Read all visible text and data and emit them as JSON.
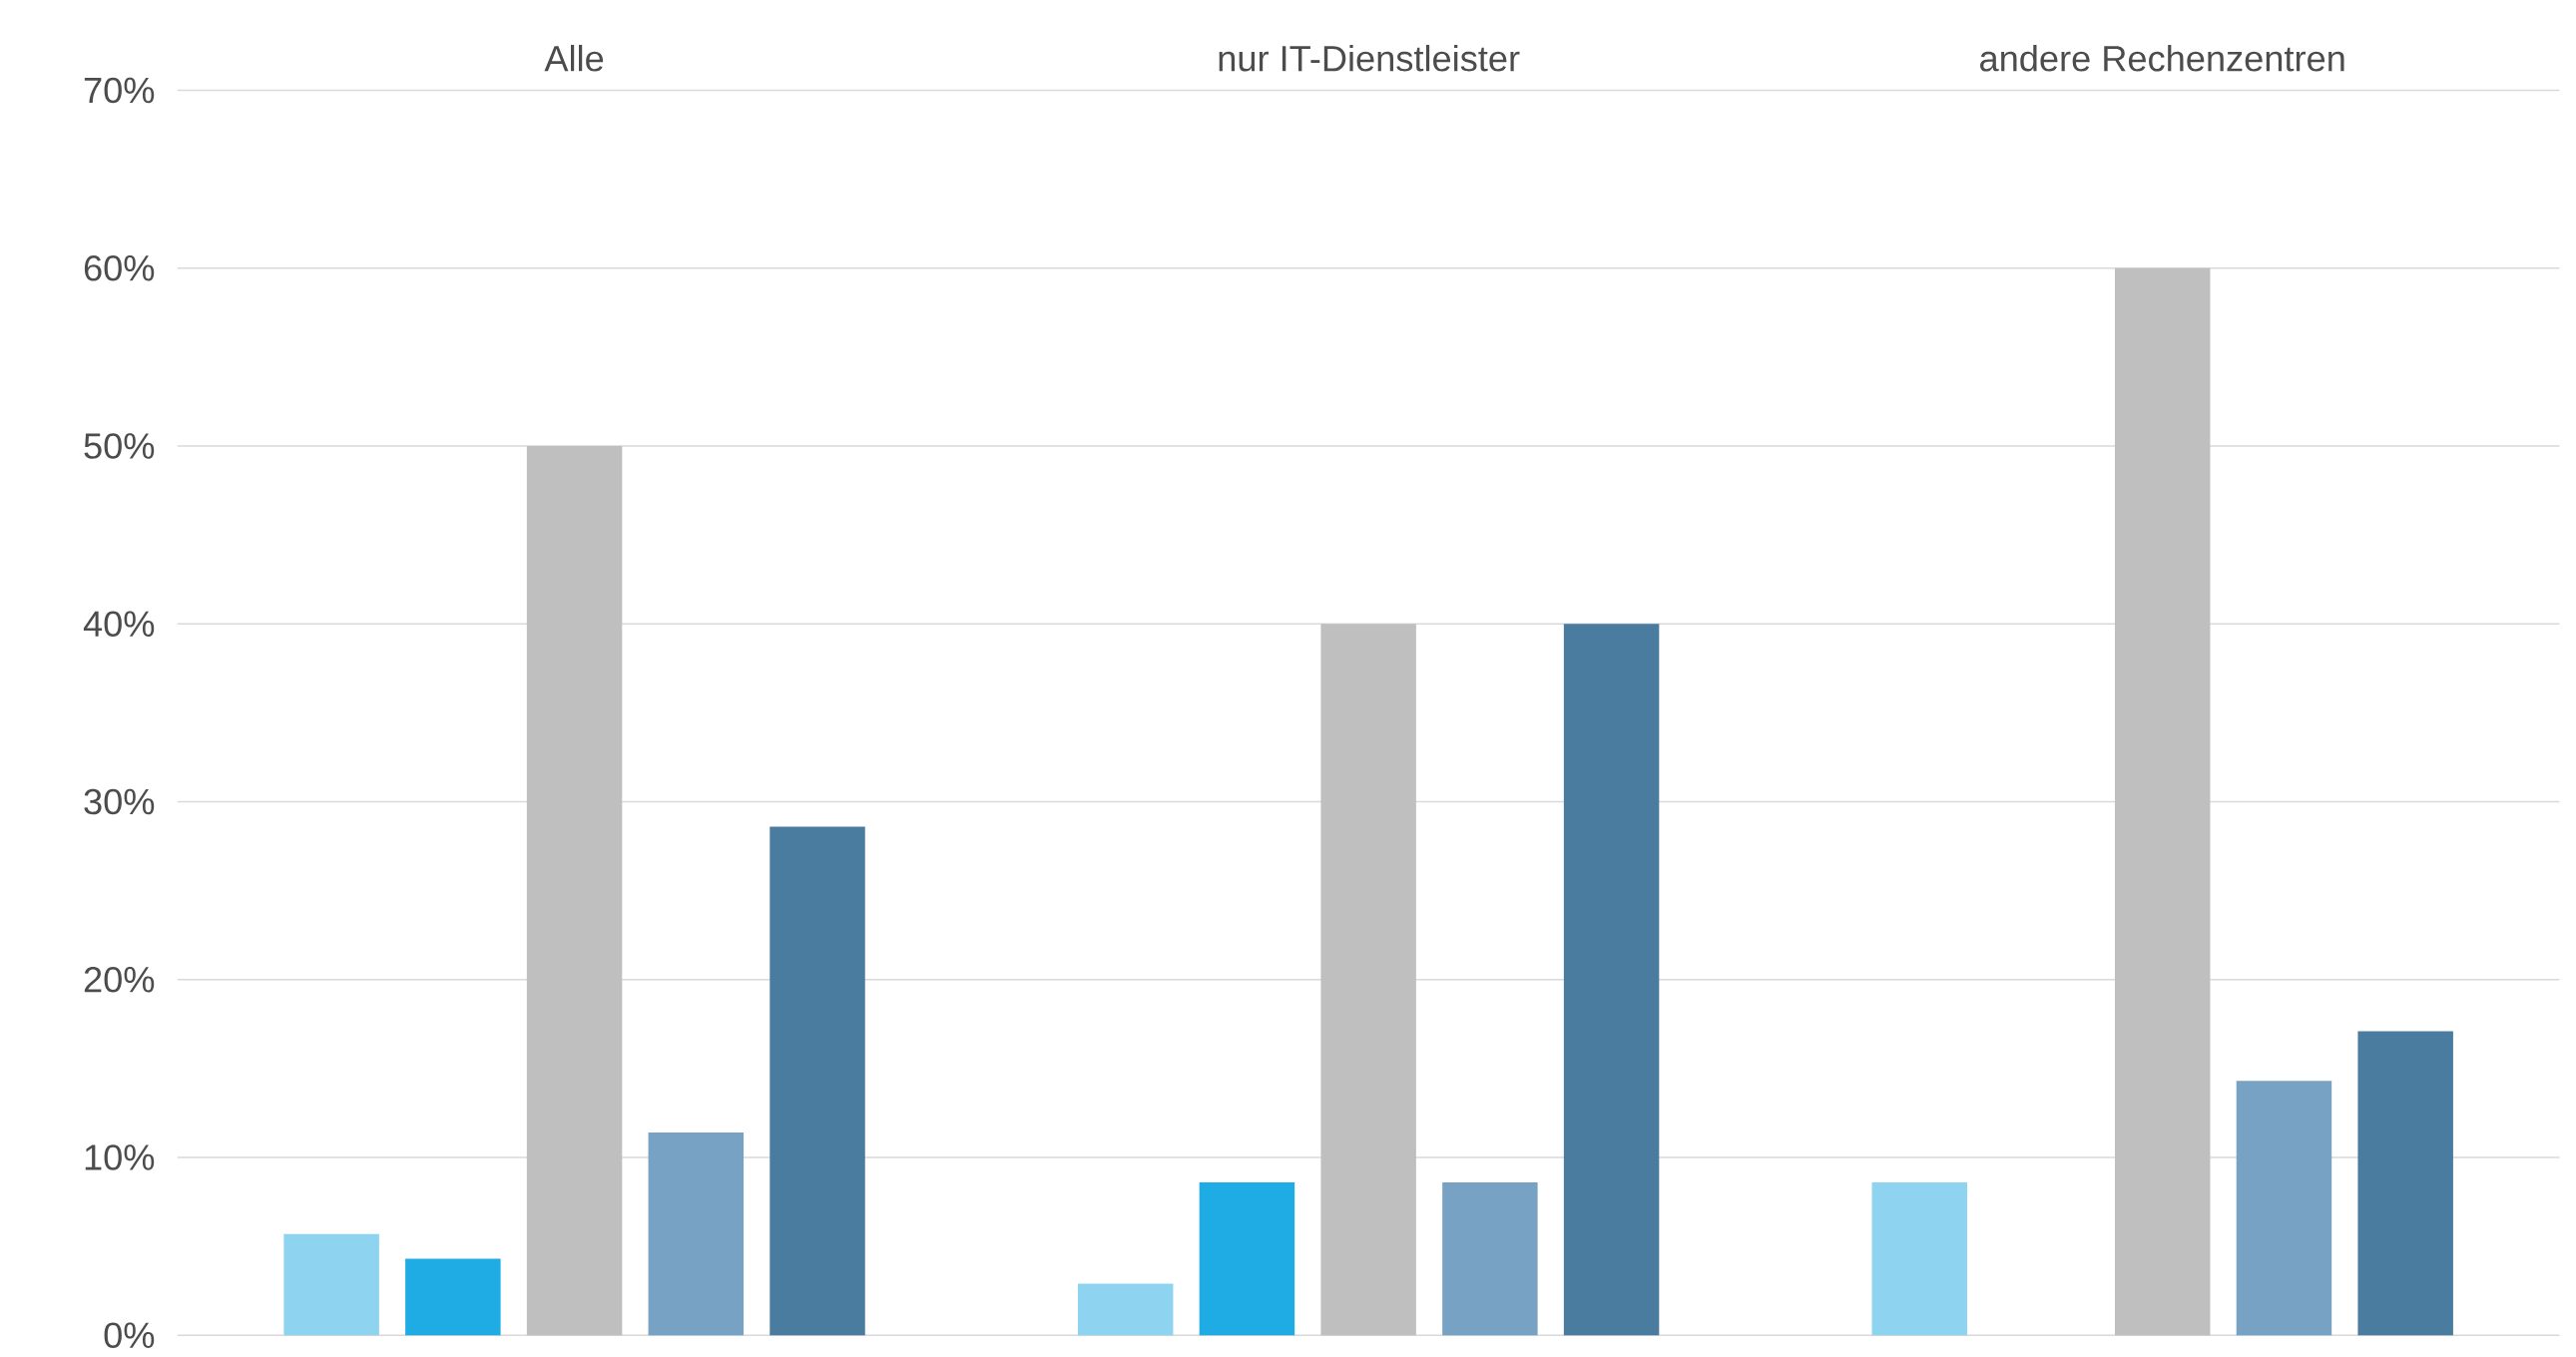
{
  "chart_data": {
    "type": "bar",
    "categories": [
      "Alle",
      "nur IT-Dienstleister",
      "andere Rechenzentren"
    ],
    "series": [
      {
        "color": "#8ed3f0",
        "values": [
          5.7,
          2.9,
          8.6
        ]
      },
      {
        "color": "#1fabe3",
        "values": [
          4.3,
          8.6,
          0
        ]
      },
      {
        "color": "#bfbfbf",
        "values": [
          50,
          40,
          60
        ]
      },
      {
        "color": "#78a2c4",
        "values": [
          11.4,
          8.6,
          14.3
        ]
      },
      {
        "color": "#4a7ca0",
        "values": [
          28.6,
          40,
          17.1
        ]
      }
    ],
    "ylim": [
      0,
      70
    ],
    "yticks": [
      {
        "value": 0,
        "label": "0%"
      },
      {
        "value": 10,
        "label": "10%"
      },
      {
        "value": 20,
        "label": "20%"
      },
      {
        "value": 30,
        "label": "30%"
      },
      {
        "value": 40,
        "label": "40%"
      },
      {
        "value": 50,
        "label": "50%"
      },
      {
        "value": 60,
        "label": "60%"
      },
      {
        "value": 70,
        "label": "70%"
      }
    ],
    "grid": "y"
  }
}
